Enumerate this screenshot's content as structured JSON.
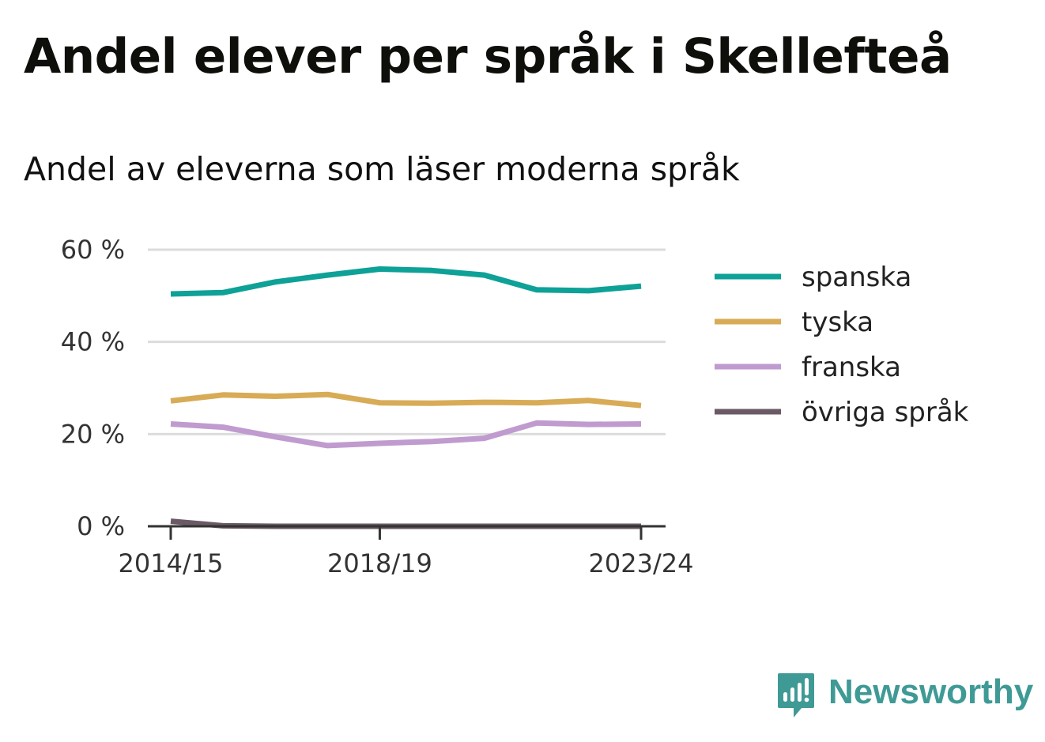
{
  "title": "Andel elever per språk i Skellefteå",
  "subtitle": "Andel av eleverna som läser moderna språk",
  "brand": {
    "name": "Newsworthy",
    "color": "#3f9a96"
  },
  "chart_data": {
    "type": "line",
    "x": [
      "2014/15",
      "2015/16",
      "2016/17",
      "2017/18",
      "2018/19",
      "2019/20",
      "2020/21",
      "2021/22",
      "2022/23",
      "2023/24"
    ],
    "x_tick_labels": [
      "2014/15",
      "2018/19",
      "2023/24"
    ],
    "y_ticks": [
      0,
      20,
      40,
      60
    ],
    "y_tick_labels": [
      "0 %",
      "20 %",
      "40 %",
      "60 %"
    ],
    "ylim": [
      0,
      60
    ],
    "grid": true,
    "legend_position": "right",
    "series": [
      {
        "name": "spanska",
        "color": "#0ea197",
        "values": [
          50.4,
          50.7,
          53.0,
          54.5,
          55.8,
          55.5,
          54.5,
          51.3,
          51.1,
          52.1
        ]
      },
      {
        "name": "tyska",
        "color": "#d8ab57",
        "values": [
          27.2,
          28.5,
          28.2,
          28.6,
          26.8,
          26.7,
          26.9,
          26.8,
          27.3,
          26.2
        ]
      },
      {
        "name": "franska",
        "color": "#c09bcf",
        "values": [
          22.2,
          21.5,
          19.4,
          17.5,
          18.0,
          18.4,
          19.1,
          22.4,
          22.1,
          22.2
        ]
      },
      {
        "name": "övriga språk",
        "color": "#6b5a66",
        "values": [
          1.1,
          0.1,
          0.0,
          0.0,
          0.0,
          0.0,
          0.0,
          0.0,
          0.0,
          0.0
        ]
      }
    ]
  }
}
